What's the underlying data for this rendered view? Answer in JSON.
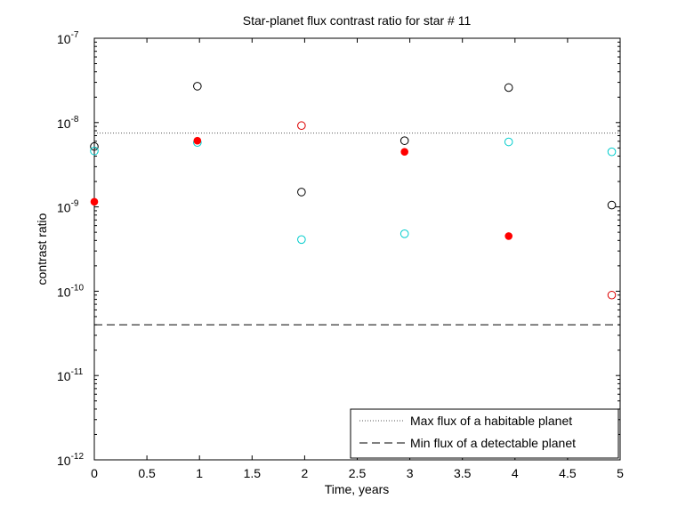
{
  "chart_data": {
    "type": "scatter",
    "title": "Star-planet flux contrast ratio for star # 11",
    "xlabel": "Time, years",
    "ylabel": "contrast ratio",
    "xlim": [
      0,
      5
    ],
    "ylim": [
      1e-12,
      1e-07
    ],
    "yscale": "log",
    "xticks": [
      "0",
      "0.5",
      "1",
      "1.5",
      "2",
      "2.5",
      "3",
      "3.5",
      "4",
      "4.5",
      "5"
    ],
    "yticks": [
      {
        "base": "10",
        "exp": "-12"
      },
      {
        "base": "10",
        "exp": "-11"
      },
      {
        "base": "10",
        "exp": "-10"
      },
      {
        "base": "10",
        "exp": "-9"
      },
      {
        "base": "10",
        "exp": "-8"
      },
      {
        "base": "10",
        "exp": "-7"
      }
    ],
    "grid": false,
    "legend_position": "bottom-right",
    "series": [
      {
        "marker": "open-circle",
        "color": "#000000",
        "filled": false,
        "x": [
          0,
          0.98,
          1.97,
          2.95,
          3.94,
          4.92
        ],
        "y": [
          5.2e-09,
          2.7e-08,
          1.5e-09,
          6.1e-09,
          2.6e-08,
          1.05e-09
        ]
      },
      {
        "marker": "open-circle",
        "color": "#00cccc",
        "filled": false,
        "x": [
          0,
          0.98,
          1.97,
          2.95,
          3.94,
          4.92
        ],
        "y": [
          4.6e-09,
          5.8e-09,
          4.1e-10,
          4.8e-10,
          5.9e-09,
          4.5e-09
        ]
      },
      {
        "marker": "open-circle",
        "color": "#dd0000",
        "filled": false,
        "x": [
          1.97,
          4.92
        ],
        "y": [
          9.2e-09,
          9e-11
        ]
      },
      {
        "marker": "filled-circle",
        "color": "#ff0000",
        "filled": true,
        "x": [
          0,
          0.98,
          2.95,
          3.94
        ],
        "y": [
          1.15e-09,
          6.1e-09,
          4.5e-09,
          4.5e-10
        ]
      }
    ],
    "reference_lines": [
      {
        "name": "Max flux of a habitable planet",
        "style": "dotted",
        "color": "#555555",
        "y": 7.5e-09
      },
      {
        "name": "Min flux of a detectable planet",
        "style": "dashed",
        "color": "#000000",
        "y": 4e-11
      }
    ]
  }
}
